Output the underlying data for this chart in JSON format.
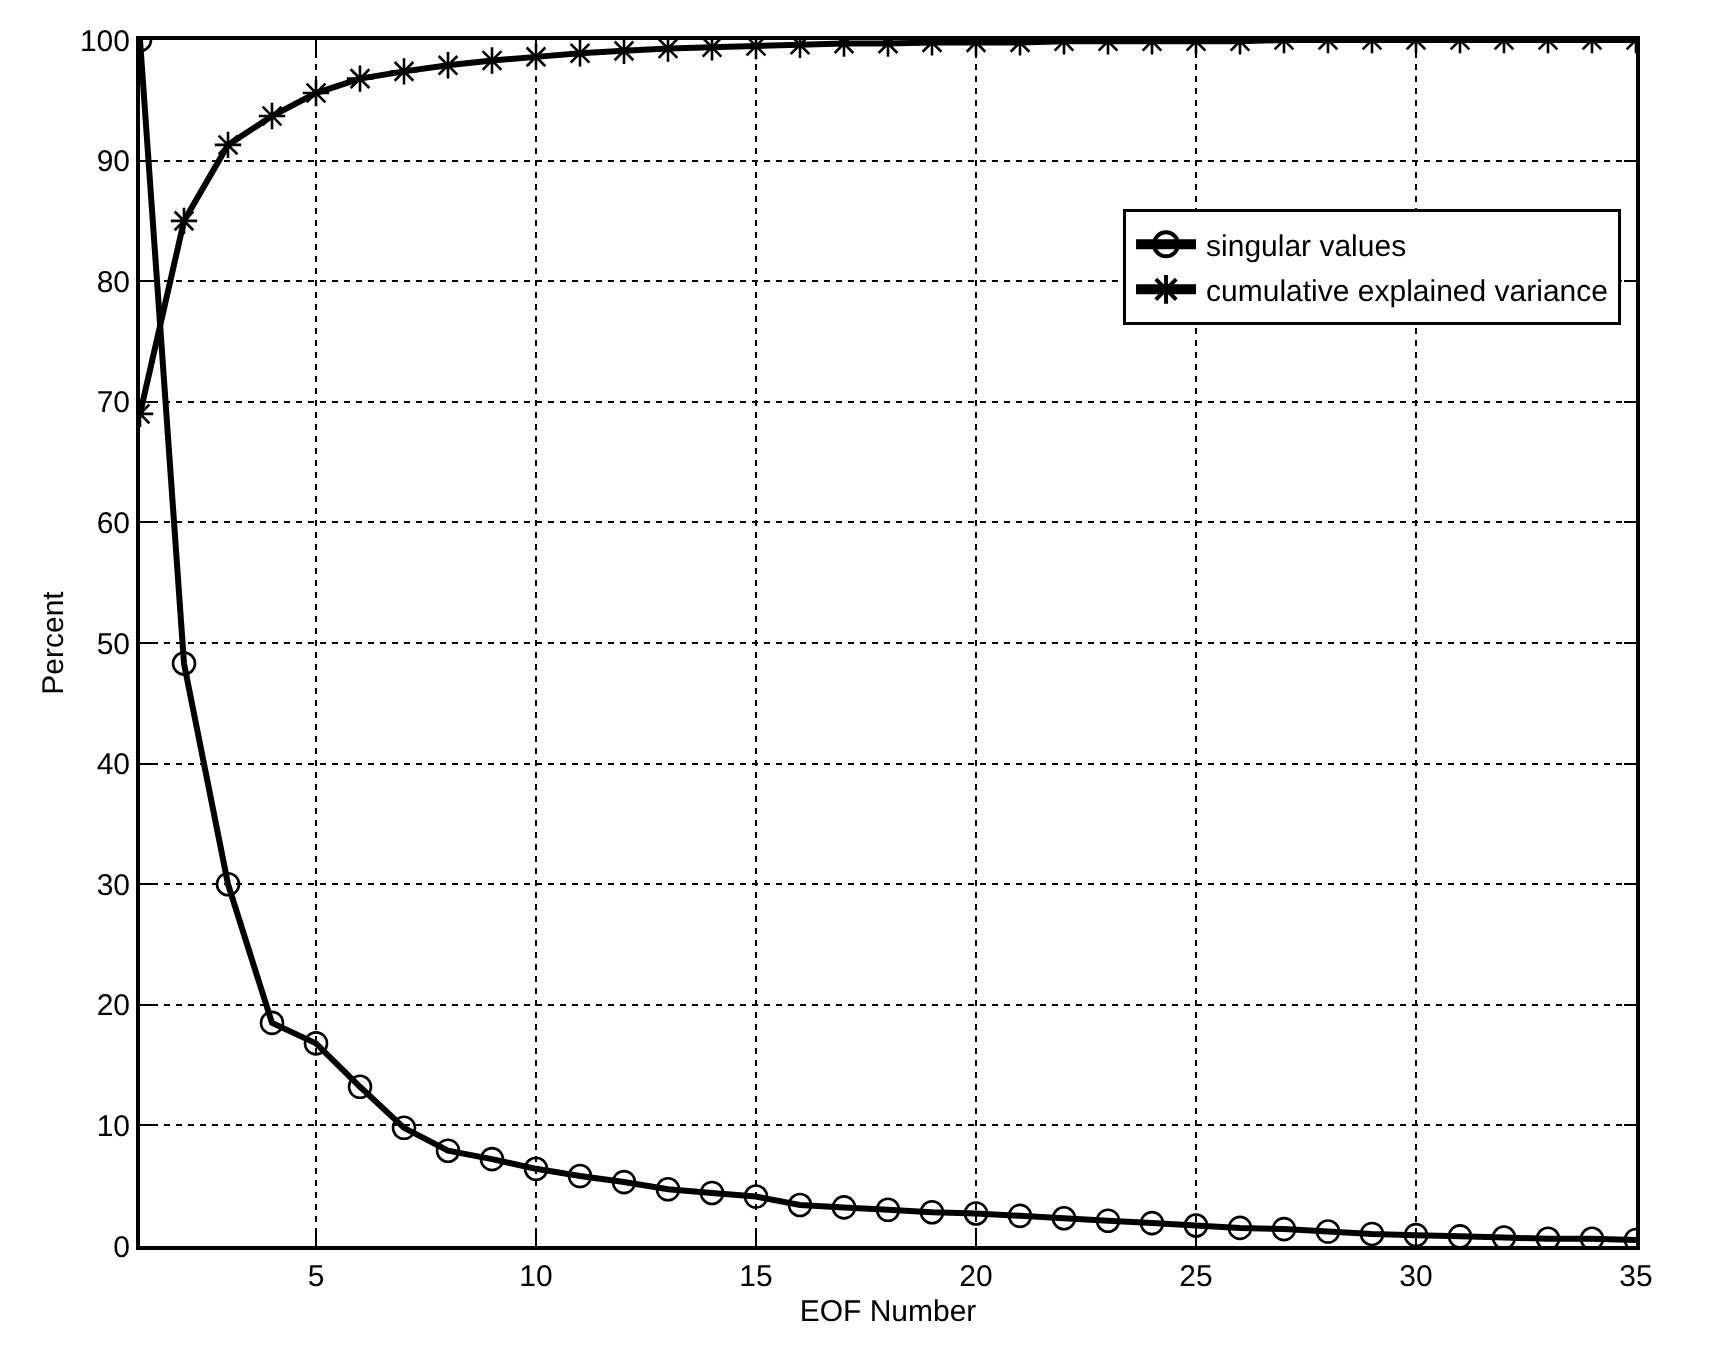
{
  "chart_data": {
    "type": "line",
    "xlabel": "EOF Number",
    "ylabel": "Percent",
    "x": [
      1,
      2,
      3,
      4,
      5,
      6,
      7,
      8,
      9,
      10,
      11,
      12,
      13,
      14,
      15,
      16,
      17,
      18,
      19,
      20,
      21,
      22,
      23,
      24,
      25,
      26,
      27,
      28,
      29,
      30,
      31,
      32,
      33,
      34,
      35
    ],
    "series": [
      {
        "name": "singular values",
        "color": "#000000",
        "marker": "circle",
        "values": [
          100,
          48.3,
          30,
          18.5,
          16.8,
          13.2,
          9.8,
          7.9,
          7.2,
          6.4,
          5.8,
          5.3,
          4.7,
          4.4,
          4.1,
          3.4,
          3.2,
          3.0,
          2.8,
          2.7,
          2.5,
          2.3,
          2.1,
          1.9,
          1.7,
          1.5,
          1.4,
          1.2,
          1.0,
          0.9,
          0.8,
          0.7,
          0.6,
          0.6,
          0.5
        ]
      },
      {
        "name": "cumulative explained variance",
        "color": "#000000",
        "marker": "cross",
        "values": [
          69,
          85,
          91.3,
          93.7,
          95.6,
          96.8,
          97.4,
          97.9,
          98.3,
          98.6,
          98.9,
          99.1,
          99.3,
          99.4,
          99.5,
          99.6,
          99.7,
          99.7,
          99.8,
          99.8,
          99.8,
          99.9,
          99.9,
          99.9,
          99.9,
          99.9,
          100,
          100,
          100,
          100,
          100,
          100,
          100,
          100,
          100
        ]
      }
    ],
    "xlim": [
      1,
      35
    ],
    "xticks": [
      5,
      10,
      15,
      20,
      25,
      30,
      35
    ],
    "ylim": [
      0,
      100
    ],
    "yticks": [
      0,
      10,
      20,
      30,
      40,
      50,
      60,
      70,
      80,
      90,
      100
    ],
    "grid": true,
    "legend": "top right",
    "line_style": "solid"
  }
}
